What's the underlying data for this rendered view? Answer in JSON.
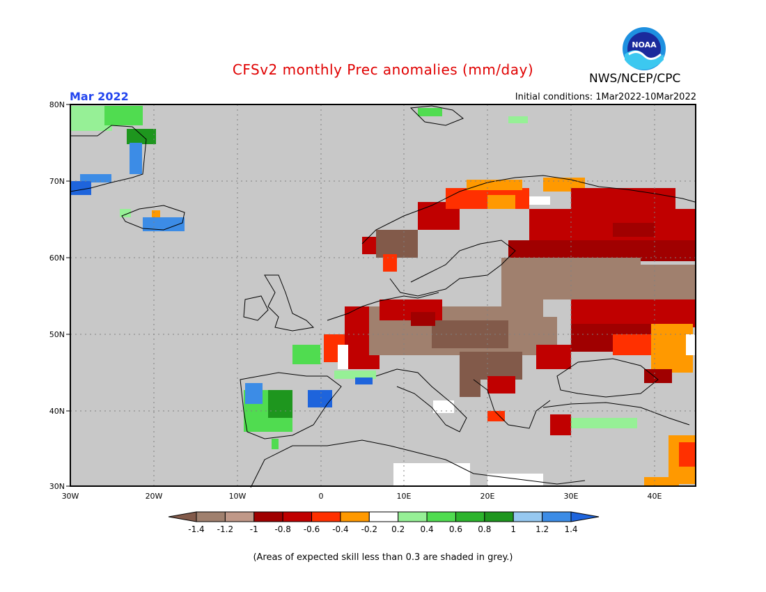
{
  "header": {
    "title": "CFSv2 monthly Prec anomalies (mm/day)",
    "agency": "NWS/NCEP/CPC",
    "logo_text": "NOAA",
    "valid_month": "Mar 2022",
    "initial_conditions": "Initial conditions: 1Mar2022-10Mar2022"
  },
  "map": {
    "lat_labels": [
      "80N",
      "70N",
      "60N",
      "50N",
      "40N",
      "30N"
    ],
    "lon_labels": [
      "30W",
      "20W",
      "10W",
      "0",
      "10E",
      "20E",
      "30E",
      "40E"
    ],
    "mask_color": "#c8c8c8"
  },
  "legend": {
    "labels": [
      "-1.4",
      "-1.2",
      "-1",
      "-0.8",
      "-0.6",
      "-0.4",
      "-0.2",
      "0.2",
      "0.4",
      "0.6",
      "0.8",
      "1",
      "1.2",
      "1.4"
    ],
    "colors": [
      "#825a4a",
      "#a0806e",
      "#c09888",
      "#a00000",
      "#c00000",
      "#ff3000",
      "#ff9900",
      "#ffffff",
      "#96f096",
      "#50dc50",
      "#2cb42c",
      "#1e961e",
      "#96c8f0",
      "#3c8ce6",
      "#1e64dc"
    ]
  },
  "footnote": "(Areas of expected skill less than 0.3 are shaded in grey.)"
}
